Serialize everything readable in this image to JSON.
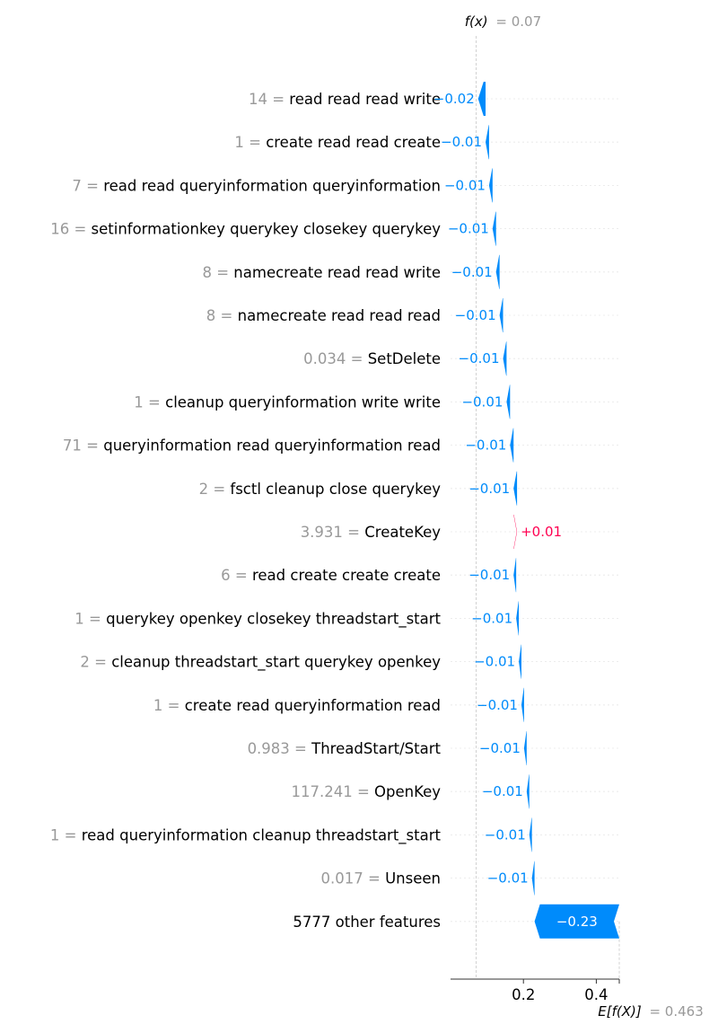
{
  "chart_data": {
    "type": "waterfall",
    "fx_label": "f(x)",
    "fx_value_text": "= 0.07",
    "fx_value": 0.07,
    "base_label": "E[f(X)]",
    "base_value_text": "= 0.463",
    "base_value": 0.463,
    "xlim": [
      0.0,
      0.463
    ],
    "x_ticks": [
      0.2,
      0.4
    ],
    "x_tick_labels": [
      "0.2",
      "0.4"
    ],
    "features": [
      {
        "value_text": "14 =",
        "name": "read read read write",
        "shap": -0.0203,
        "label": "−0.02"
      },
      {
        "value_text": "1 =",
        "name": "create read read create",
        "shap": -0.0096,
        "label": "−0.01"
      },
      {
        "value_text": "7 =",
        "name": "read read queryinformation queryinformation",
        "shap": -0.0096,
        "label": "−0.01"
      },
      {
        "value_text": "16 =",
        "name": "setinformationkey querykey closekey querykey",
        "shap": -0.0096,
        "label": "−0.01"
      },
      {
        "value_text": "8 =",
        "name": "namecreate read read write",
        "shap": -0.0096,
        "label": "−0.01"
      },
      {
        "value_text": "8 =",
        "name": "namecreate read read read",
        "shap": -0.0096,
        "label": "−0.01"
      },
      {
        "value_text": "0.034 =",
        "name": "SetDelete",
        "shap": -0.0096,
        "label": "−0.01"
      },
      {
        "value_text": "1 =",
        "name": "cleanup queryinformation write write",
        "shap": -0.0096,
        "label": "−0.01"
      },
      {
        "value_text": "71 =",
        "name": "queryinformation read queryinformation read",
        "shap": -0.0096,
        "label": "−0.01"
      },
      {
        "value_text": "2 =",
        "name": "fsctl cleanup close querykey",
        "shap": -0.0096,
        "label": "−0.01"
      },
      {
        "value_text": "3.931 =",
        "name": "CreateKey",
        "shap": 0.0096,
        "label": "+0.01"
      },
      {
        "value_text": "6 =",
        "name": "read create create create",
        "shap": -0.0072,
        "label": "−0.01"
      },
      {
        "value_text": "1 =",
        "name": "querykey openkey closekey threadstart_start",
        "shap": -0.0072,
        "label": "−0.01"
      },
      {
        "value_text": "2 =",
        "name": "cleanup threadstart_start querykey openkey",
        "shap": -0.0072,
        "label": "−0.01"
      },
      {
        "value_text": "1 =",
        "name": "create read queryinformation read",
        "shap": -0.0072,
        "label": "−0.01"
      },
      {
        "value_text": "0.983 =",
        "name": "ThreadStart/Start",
        "shap": -0.0072,
        "label": "−0.01"
      },
      {
        "value_text": "117.241 =",
        "name": "OpenKey",
        "shap": -0.0072,
        "label": "−0.01"
      },
      {
        "value_text": "1 =",
        "name": "read queryinformation cleanup threadstart_start",
        "shap": -0.0072,
        "label": "−0.01"
      },
      {
        "value_text": "0.017 =",
        "name": "Unseen",
        "shap": -0.0072,
        "label": "−0.01"
      },
      {
        "value_text": "",
        "name": "5777 other features",
        "shap": -0.2325,
        "label": "−0.23"
      }
    ],
    "positive_color": "#ff0051",
    "negative_color": "#008bfb",
    "grid": true,
    "legend": "none"
  }
}
